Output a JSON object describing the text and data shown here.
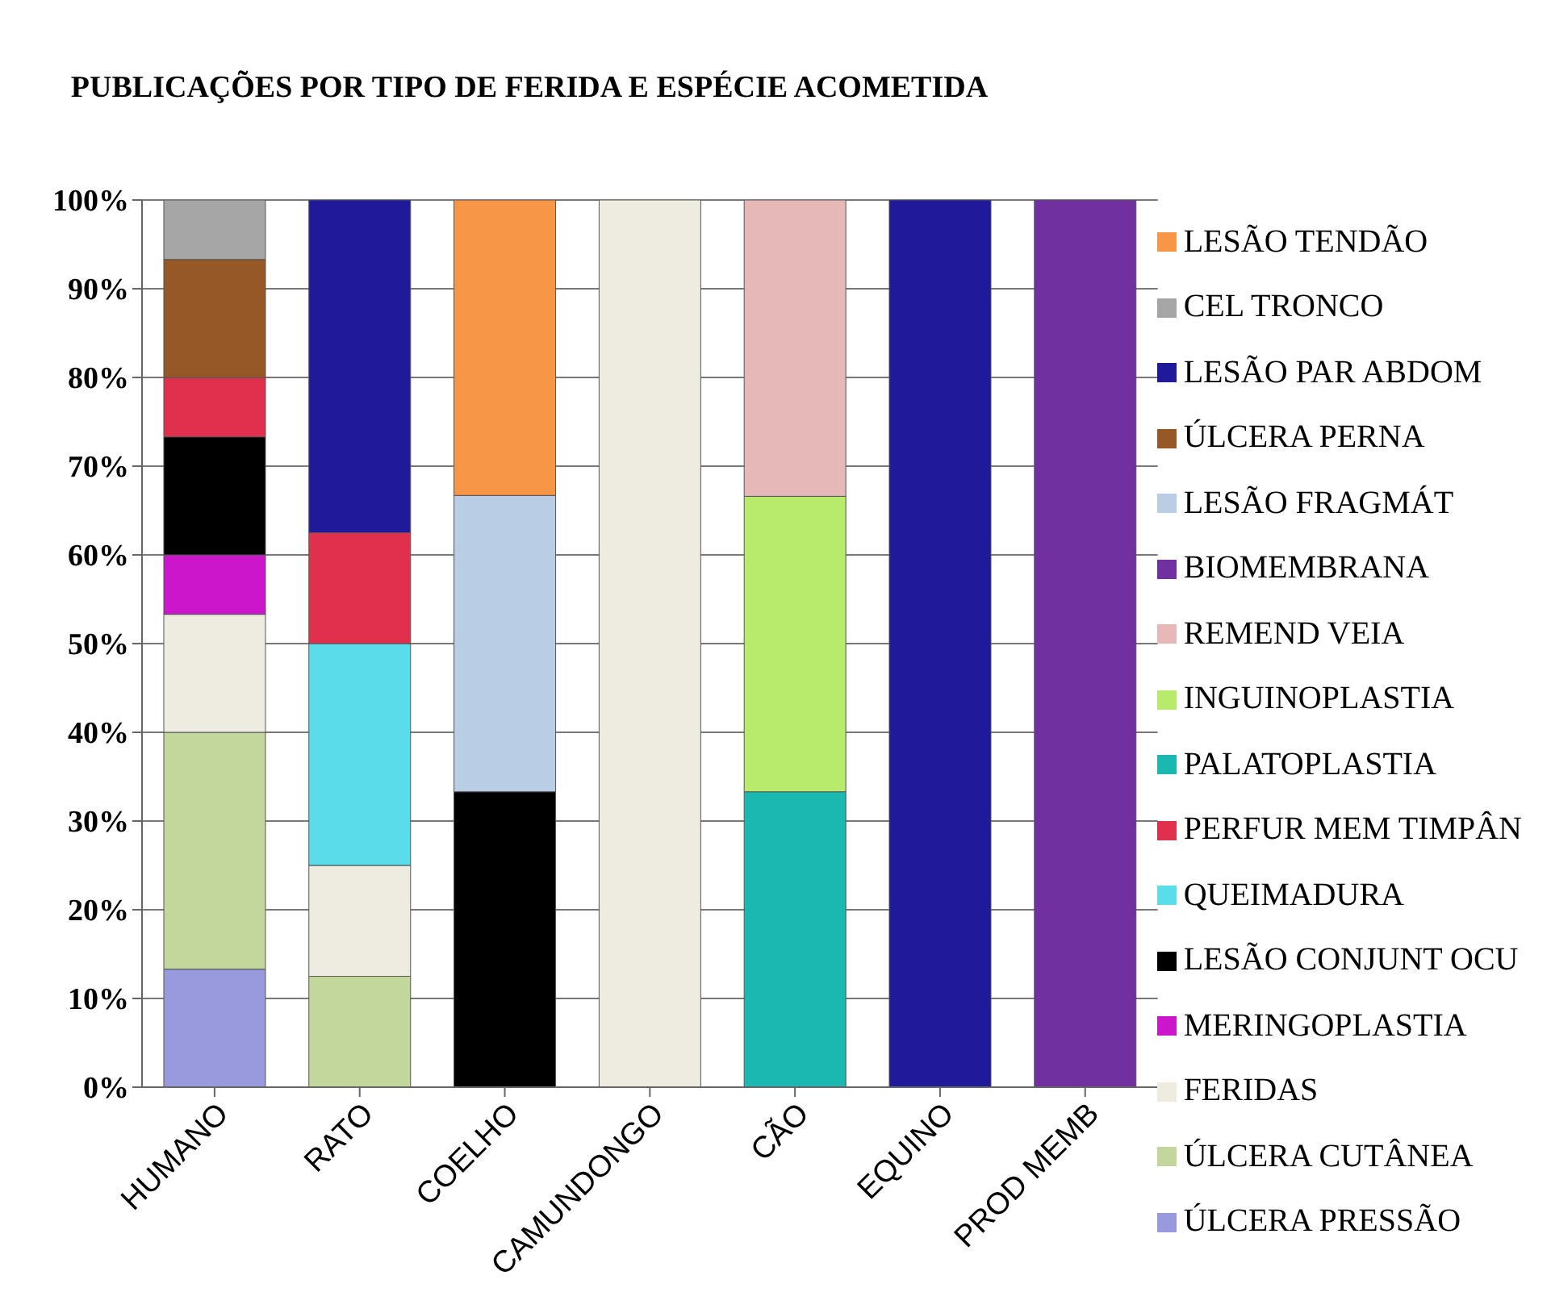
{
  "chart_data": {
    "type": "bar",
    "title": "PUBLICAÇÕES POR TIPO DE FERIDA  E ESPÉCIE ACOMETIDA",
    "stacked": true,
    "categories": [
      "HUMANO",
      "RATO",
      "COELHO",
      "CAMUNDONGO",
      "CÃO",
      "EQUINO",
      "PROD MEMB"
    ],
    "series": [
      {
        "name": "ÚLCERA PRESSÃO",
        "color": "#9999dd",
        "values": [
          13.3,
          null,
          null,
          null,
          null,
          null,
          null
        ]
      },
      {
        "name": "ÚLCERA CUTÂNEA",
        "color": "#c3d69b",
        "values": [
          26.7,
          12.5,
          null,
          null,
          null,
          null,
          null
        ]
      },
      {
        "name": "FERIDAS",
        "color": "#eeece1",
        "values": [
          13.3,
          12.5,
          null,
          100,
          null,
          null,
          null
        ]
      },
      {
        "name": "MERINGOPLASTIA",
        "color": "#cc16cc",
        "values": [
          6.7,
          null,
          null,
          null,
          null,
          null,
          null
        ]
      },
      {
        "name": "LESÃO CONJUNT OCU",
        "color": "#000000",
        "values": [
          13.3,
          null,
          33.3,
          null,
          null,
          null,
          null
        ]
      },
      {
        "name": "QUEIMADURA",
        "color": "#5bdcea",
        "values": [
          null,
          25,
          null,
          null,
          null,
          null,
          null
        ]
      },
      {
        "name": "PERFUR MEM TIMPÂN",
        "color": "#e0304e",
        "values": [
          6.7,
          12.5,
          null,
          null,
          null,
          null,
          null
        ]
      },
      {
        "name": "PALATOPLASTIA",
        "color": "#1ab8b0",
        "values": [
          null,
          null,
          null,
          null,
          33.3,
          null,
          null
        ]
      },
      {
        "name": "INGUINOPLASTIA",
        "color": "#b8ea6c",
        "values": [
          null,
          null,
          null,
          null,
          33.3,
          null,
          null
        ]
      },
      {
        "name": "REMEND VEIA",
        "color": "#e6b8b7",
        "values": [
          null,
          null,
          null,
          null,
          33.4,
          null,
          null
        ]
      },
      {
        "name": "BIOMEMBRANA",
        "color": "#7030a0",
        "values": [
          null,
          null,
          null,
          null,
          null,
          null,
          100
        ]
      },
      {
        "name": "LESÃO FRAGMÁT",
        "color": "#b9cde5",
        "values": [
          null,
          null,
          33.4,
          null,
          null,
          null,
          null
        ]
      },
      {
        "name": "ÚLCERA PERNA",
        "color": "#955826",
        "values": [
          13.3,
          null,
          null,
          null,
          null,
          null,
          null
        ]
      },
      {
        "name": "LESÃO PAR ABDOM",
        "color": "#201a9a",
        "values": [
          null,
          37.5,
          null,
          null,
          null,
          100,
          null
        ]
      },
      {
        "name": "CEL TRONCO",
        "color": "#a6a6a6",
        "values": [
          6.7,
          null,
          null,
          null,
          null,
          null,
          null
        ]
      },
      {
        "name": "LESÃO TENDÃO",
        "color": "#f79646",
        "values": [
          null,
          null,
          33.3,
          null,
          null,
          null,
          null
        ]
      }
    ],
    "ylim": [
      0,
      100
    ],
    "yticks": [
      {
        "value": 0,
        "label": "0%"
      },
      {
        "value": 10,
        "label": "10%"
      },
      {
        "value": 20,
        "label": "20%"
      },
      {
        "value": 30,
        "label": "30%"
      },
      {
        "value": 40,
        "label": "40%"
      },
      {
        "value": 50,
        "label": "50%"
      },
      {
        "value": 60,
        "label": "60%"
      },
      {
        "value": 70,
        "label": "70%"
      },
      {
        "value": 80,
        "label": "80%"
      },
      {
        "value": 90,
        "label": "90%"
      },
      {
        "value": 100,
        "label": "100%"
      }
    ],
    "grid": "y",
    "legend": "right"
  }
}
